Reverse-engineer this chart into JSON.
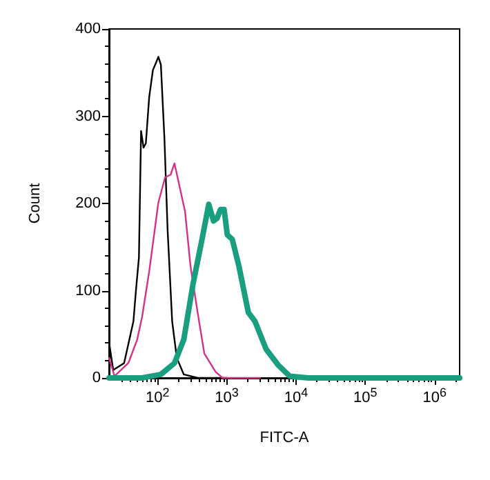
{
  "chart_data": {
    "type": "line",
    "xlabel": "FITC-A",
    "ylabel": "Count",
    "log": "x",
    "grid": false,
    "marker": "none",
    "line_style": "solid",
    "xlim": [
      20,
      2300000
    ],
    "ylim": [
      0,
      400
    ],
    "yticks": [
      0,
      100,
      200,
      300,
      400
    ],
    "xticks": [
      {
        "value": 100,
        "label": "10$^{2}$"
      },
      {
        "value": 1000,
        "label": "10$^{3}$"
      },
      {
        "value": 10000,
        "label": "10$^{4}$"
      },
      {
        "value": 100000,
        "label": "10$^{5}$"
      },
      {
        "value": 1000000,
        "label": "10$^{6}$"
      }
    ],
    "series": [
      {
        "color": "#000000",
        "x": [
          20,
          23,
          33,
          45,
          49,
          54,
          58,
          63,
          68,
          76,
          86,
          95,
          103,
          112,
          126,
          140,
          163,
          190,
          240,
          380,
          1000
        ],
        "values": [
          41,
          9,
          17,
          65,
          101,
          138,
          283,
          264,
          269,
          322,
          353,
          361,
          368,
          359,
          275,
          170,
          65,
          23,
          4,
          0,
          0
        ]
      },
      {
        "color": "#d6308a",
        "x": [
          20,
          24,
          38,
          51,
          60,
          76,
          103,
          129,
          155,
          176,
          205,
          250,
          300,
          380,
          475,
          690,
          870,
          3000
        ],
        "values": [
          23,
          2,
          17,
          44,
          70,
          122,
          201,
          230,
          233,
          246,
          222,
          191,
          128,
          75,
          28,
          7,
          0,
          0
        ]
      },
      {
        "color": "#1a9e80",
        "x": [
          20,
          60,
          112,
          176,
          240,
          325,
          440,
          550,
          645,
          725,
          810,
          915,
          1020,
          1200,
          1500,
          2050,
          2550,
          3700,
          5500,
          8100,
          15000,
          2300000
        ],
        "values": [
          0,
          0,
          4,
          17,
          44,
          107,
          159,
          199,
          180,
          183,
          193,
          193,
          164,
          159,
          128,
          75,
          65,
          33,
          15,
          2,
          0,
          0
        ]
      }
    ]
  }
}
